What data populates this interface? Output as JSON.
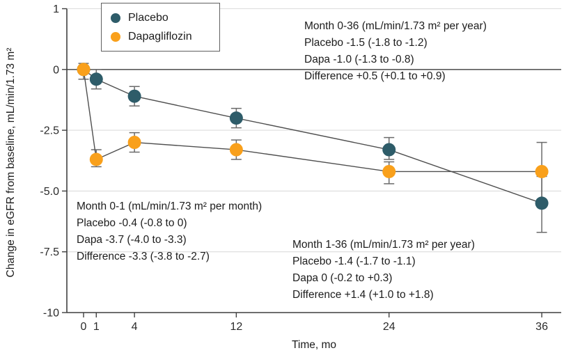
{
  "chart_data": {
    "type": "line",
    "title": "",
    "xlabel": "Time, mo",
    "ylabel": "Change in eGFR from baseline, mL/min/1.73 m²",
    "grid": true,
    "legend_position": "top-left-inside",
    "xlim": [
      0,
      37.5
    ],
    "ylim": [
      -10,
      1
    ],
    "x_ticks": [
      0,
      1,
      4,
      12,
      24,
      36
    ],
    "y_ticks": [
      {
        "label": "1",
        "value": 1
      },
      {
        "label": "0",
        "value": 0
      },
      {
        "label": "-2.5",
        "value": -2.5
      },
      {
        "label": "-5.0",
        "value": -5
      },
      {
        "label": "-7.5",
        "value": -7.5
      },
      {
        "label": "-10",
        "value": -10
      }
    ],
    "series": [
      {
        "name": "Placebo",
        "color": "#2E5C69",
        "points": [
          {
            "x": 0,
            "y": 0,
            "lo": null,
            "hi": null
          },
          {
            "x": 1,
            "y": -0.4,
            "lo": -0.8,
            "hi": 0
          },
          {
            "x": 4,
            "y": -1.1,
            "lo": -1.5,
            "hi": -0.7
          },
          {
            "x": 12,
            "y": -2.0,
            "lo": -2.4,
            "hi": -1.6
          },
          {
            "x": 24,
            "y": -3.3,
            "lo": -3.7,
            "hi": -2.8
          },
          {
            "x": 36,
            "y": -5.5,
            "lo": -6.7,
            "hi": -4.4
          }
        ]
      },
      {
        "name": "Dapagliflozin",
        "color": "#F9A01B",
        "points": [
          {
            "x": 0,
            "y": 0,
            "lo": -0.4,
            "hi": 0.1
          },
          {
            "x": 1,
            "y": -3.7,
            "lo": -4.0,
            "hi": -3.3
          },
          {
            "x": 4,
            "y": -3.0,
            "lo": -3.4,
            "hi": -2.6
          },
          {
            "x": 12,
            "y": -3.3,
            "lo": -3.7,
            "hi": -2.9
          },
          {
            "x": 24,
            "y": -4.2,
            "lo": -4.7,
            "hi": -3.8
          },
          {
            "x": 36,
            "y": -4.2,
            "lo": -5.4,
            "hi": -3.0
          }
        ]
      }
    ],
    "annotations": [
      {
        "id": "month-0-36",
        "lines": [
          "Month 0-36 (mL/min/1.73 m² per year)",
          "Placebo -1.5 (-1.8 to -1.2)",
          "Dapa -1.0 (-1.3 to -0.8)",
          "Difference +0.5 (+0.1 to +0.9)"
        ]
      },
      {
        "id": "month-0-1",
        "lines": [
          "Month 0-1 (mL/min/1.73 m² per month)",
          "Placebo -0.4 (-0.8 to 0)",
          "Dapa -3.7 (-4.0 to -3.3)",
          "Difference -3.3 (-3.8 to -2.7)"
        ]
      },
      {
        "id": "month-1-36",
        "lines": [
          "Month 1-36 (mL/min/1.73 m² per year)",
          "Placebo -1.4 (-1.7 to -1.1)",
          "Dapa 0 (-0.2 to +0.3)",
          "Difference +1.4 (+1.0 to +1.8)"
        ]
      }
    ],
    "style_colors": {
      "grid_line": "#dcdcdc",
      "zero_line": "#595959",
      "axis_line": "#3f3f3f",
      "error_bar": "#6a6a6a",
      "series_line": "#4f4f4f",
      "text": "#1c1c1c"
    }
  }
}
